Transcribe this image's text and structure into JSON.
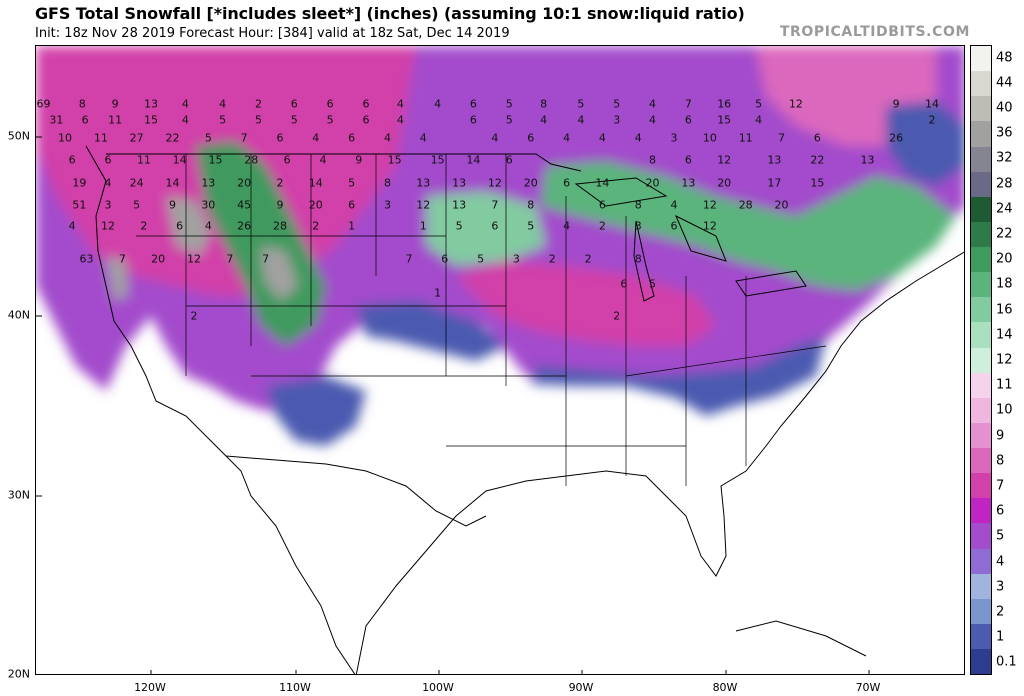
{
  "header": {
    "title": "GFS Total Snowfall [*includes sleet*] (inches) (assuming 10:1 snow:liquid ratio)",
    "subtitle": "Init: 18z Nov 28 2019   Forecast Hour: [384]   valid at 18z Sat, Dec 14 2019",
    "brand": "TROPICALTIDBITS.COM"
  },
  "axes": {
    "lat_labels": [
      "50N",
      "40N",
      "30N",
      "20N"
    ],
    "lon_labels": [
      "120W",
      "110W",
      "100W",
      "90W",
      "80W",
      "70W"
    ]
  },
  "colorbar": {
    "labels": [
      "48",
      "44",
      "40",
      "36",
      "32",
      "28",
      "24",
      "22",
      "20",
      "18",
      "16",
      "14",
      "12",
      "11",
      "10",
      "9",
      "8",
      "7",
      "6",
      "5",
      "4",
      "3",
      "2",
      "1",
      "0.1"
    ],
    "colors": [
      "#f2f2ee",
      "#d8d8d0",
      "#bdbdb6",
      "#a1a1a0",
      "#858592",
      "#6a6a86",
      "#1e5a34",
      "#2e7a48",
      "#3f9a5e",
      "#5ab47c",
      "#82caa0",
      "#aadfc0",
      "#ceefdc",
      "#f3d4ec",
      "#efb6e0",
      "#e590cf",
      "#db68bd",
      "#d240a9",
      "#c025c4",
      "#a34ccc",
      "#8e6cd4",
      "#a0b4de",
      "#7a96cc",
      "#4c5ab0",
      "#2e3c90"
    ]
  },
  "map_values": [
    {
      "v": "69",
      "lat": 51.8,
      "lon": -127.5
    },
    {
      "v": "8",
      "lat": 51.8,
      "lon": -124.8
    },
    {
      "v": "9",
      "lat": 51.8,
      "lon": -122.5
    },
    {
      "v": "13",
      "lat": 51.8,
      "lon": -120.0
    },
    {
      "v": "4",
      "lat": 51.8,
      "lon": -117.6
    },
    {
      "v": "4",
      "lat": 51.8,
      "lon": -115.0
    },
    {
      "v": "2",
      "lat": 51.8,
      "lon": -112.5
    },
    {
      "v": "6",
      "lat": 51.8,
      "lon": -110.0
    },
    {
      "v": "6",
      "lat": 51.8,
      "lon": -107.5
    },
    {
      "v": "6",
      "lat": 51.8,
      "lon": -105.0
    },
    {
      "v": "4",
      "lat": 51.8,
      "lon": -102.6
    },
    {
      "v": "4",
      "lat": 51.8,
      "lon": -100.0
    },
    {
      "v": "6",
      "lat": 51.8,
      "lon": -97.5
    },
    {
      "v": "5",
      "lat": 51.8,
      "lon": -95.0
    },
    {
      "v": "8",
      "lat": 51.8,
      "lon": -92.6
    },
    {
      "v": "5",
      "lat": 51.8,
      "lon": -90.0
    },
    {
      "v": "5",
      "lat": 51.8,
      "lon": -87.5
    },
    {
      "v": "4",
      "lat": 51.8,
      "lon": -85.0
    },
    {
      "v": "7",
      "lat": 51.8,
      "lon": -82.5
    },
    {
      "v": "16",
      "lat": 51.8,
      "lon": -80.0
    },
    {
      "v": "5",
      "lat": 51.8,
      "lon": -77.6
    },
    {
      "v": "12",
      "lat": 51.8,
      "lon": -75.0
    },
    {
      "v": "9",
      "lat": 51.8,
      "lon": -68.0
    },
    {
      "v": "14",
      "lat": 51.8,
      "lon": -65.5
    },
    {
      "v": "31",
      "lat": 50.9,
      "lon": -126.6
    },
    {
      "v": "6",
      "lat": 50.9,
      "lon": -124.6
    },
    {
      "v": "11",
      "lat": 50.9,
      "lon": -122.5
    },
    {
      "v": "15",
      "lat": 50.9,
      "lon": -120.0
    },
    {
      "v": "4",
      "lat": 50.9,
      "lon": -117.6
    },
    {
      "v": "5",
      "lat": 50.9,
      "lon": -115.0
    },
    {
      "v": "5",
      "lat": 50.9,
      "lon": -112.5
    },
    {
      "v": "5",
      "lat": 50.9,
      "lon": -110.0
    },
    {
      "v": "5",
      "lat": 50.9,
      "lon": -107.5
    },
    {
      "v": "6",
      "lat": 50.9,
      "lon": -105.0
    },
    {
      "v": "4",
      "lat": 50.9,
      "lon": -102.6
    },
    {
      "v": "6",
      "lat": 50.9,
      "lon": -97.5
    },
    {
      "v": "5",
      "lat": 50.9,
      "lon": -95.0
    },
    {
      "v": "4",
      "lat": 50.9,
      "lon": -92.6
    },
    {
      "v": "4",
      "lat": 50.9,
      "lon": -90.0
    },
    {
      "v": "3",
      "lat": 50.9,
      "lon": -87.5
    },
    {
      "v": "4",
      "lat": 50.9,
      "lon": -85.0
    },
    {
      "v": "6",
      "lat": 50.9,
      "lon": -82.5
    },
    {
      "v": "15",
      "lat": 50.9,
      "lon": -80.0
    },
    {
      "v": "4",
      "lat": 50.9,
      "lon": -77.6
    },
    {
      "v": "2",
      "lat": 50.9,
      "lon": -65.5
    },
    {
      "v": "10",
      "lat": 49.9,
      "lon": -126.0
    },
    {
      "v": "11",
      "lat": 49.9,
      "lon": -123.5
    },
    {
      "v": "27",
      "lat": 49.9,
      "lon": -121.0
    },
    {
      "v": "22",
      "lat": 49.9,
      "lon": -118.5
    },
    {
      "v": "5",
      "lat": 49.9,
      "lon": -116.0
    },
    {
      "v": "7",
      "lat": 49.9,
      "lon": -113.5
    },
    {
      "v": "6",
      "lat": 49.9,
      "lon": -111.0
    },
    {
      "v": "4",
      "lat": 49.9,
      "lon": -108.5
    },
    {
      "v": "6",
      "lat": 49.9,
      "lon": -106.0
    },
    {
      "v": "4",
      "lat": 49.9,
      "lon": -103.5
    },
    {
      "v": "4",
      "lat": 49.9,
      "lon": -101.0
    },
    {
      "v": "4",
      "lat": 49.9,
      "lon": -96.0
    },
    {
      "v": "6",
      "lat": 49.9,
      "lon": -93.5
    },
    {
      "v": "4",
      "lat": 49.9,
      "lon": -91.0
    },
    {
      "v": "4",
      "lat": 49.9,
      "lon": -88.5
    },
    {
      "v": "4",
      "lat": 49.9,
      "lon": -86.0
    },
    {
      "v": "3",
      "lat": 49.9,
      "lon": -83.5
    },
    {
      "v": "10",
      "lat": 49.9,
      "lon": -81.0
    },
    {
      "v": "11",
      "lat": 49.9,
      "lon": -78.5
    },
    {
      "v": "7",
      "lat": 49.9,
      "lon": -76.0
    },
    {
      "v": "6",
      "lat": 49.9,
      "lon": -73.5
    },
    {
      "v": "26",
      "lat": 49.9,
      "lon": -68.0
    },
    {
      "v": "6",
      "lat": 48.7,
      "lon": -125.5
    },
    {
      "v": "6",
      "lat": 48.7,
      "lon": -123.0
    },
    {
      "v": "11",
      "lat": 48.7,
      "lon": -120.5
    },
    {
      "v": "14",
      "lat": 48.7,
      "lon": -118.0
    },
    {
      "v": "15",
      "lat": 48.7,
      "lon": -115.5
    },
    {
      "v": "28",
      "lat": 48.7,
      "lon": -113.0
    },
    {
      "v": "6",
      "lat": 48.7,
      "lon": -110.5
    },
    {
      "v": "4",
      "lat": 48.7,
      "lon": -108.0
    },
    {
      "v": "9",
      "lat": 48.7,
      "lon": -105.5
    },
    {
      "v": "15",
      "lat": 48.7,
      "lon": -103.0
    },
    {
      "v": "15",
      "lat": 48.7,
      "lon": -100.0
    },
    {
      "v": "14",
      "lat": 48.7,
      "lon": -97.5
    },
    {
      "v": "6",
      "lat": 48.7,
      "lon": -95.0
    },
    {
      "v": "8",
      "lat": 48.7,
      "lon": -85.0
    },
    {
      "v": "6",
      "lat": 48.7,
      "lon": -82.5
    },
    {
      "v": "12",
      "lat": 48.7,
      "lon": -80.0
    },
    {
      "v": "13",
      "lat": 48.7,
      "lon": -76.5
    },
    {
      "v": "22",
      "lat": 48.7,
      "lon": -73.5
    },
    {
      "v": "13",
      "lat": 48.7,
      "lon": -70.0
    },
    {
      "v": "19",
      "lat": 47.4,
      "lon": -125.0
    },
    {
      "v": "4",
      "lat": 47.4,
      "lon": -123.0
    },
    {
      "v": "24",
      "lat": 47.4,
      "lon": -121.0
    },
    {
      "v": "14",
      "lat": 47.4,
      "lon": -118.5
    },
    {
      "v": "13",
      "lat": 47.4,
      "lon": -116.0
    },
    {
      "v": "20",
      "lat": 47.4,
      "lon": -113.5
    },
    {
      "v": "2",
      "lat": 47.4,
      "lon": -111.0
    },
    {
      "v": "14",
      "lat": 47.4,
      "lon": -108.5
    },
    {
      "v": "5",
      "lat": 47.4,
      "lon": -106.0
    },
    {
      "v": "8",
      "lat": 47.4,
      "lon": -103.5
    },
    {
      "v": "13",
      "lat": 47.4,
      "lon": -101.0
    },
    {
      "v": "13",
      "lat": 47.4,
      "lon": -98.5
    },
    {
      "v": "12",
      "lat": 47.4,
      "lon": -96.0
    },
    {
      "v": "20",
      "lat": 47.4,
      "lon": -93.5
    },
    {
      "v": "6",
      "lat": 47.4,
      "lon": -91.0
    },
    {
      "v": "14",
      "lat": 47.4,
      "lon": -88.5
    },
    {
      "v": "20",
      "lat": 47.4,
      "lon": -85.0
    },
    {
      "v": "13",
      "lat": 47.4,
      "lon": -82.5
    },
    {
      "v": "20",
      "lat": 47.4,
      "lon": -80.0
    },
    {
      "v": "17",
      "lat": 47.4,
      "lon": -76.5
    },
    {
      "v": "15",
      "lat": 47.4,
      "lon": -73.5
    },
    {
      "v": "51",
      "lat": 46.2,
      "lon": -125.0
    },
    {
      "v": "3",
      "lat": 46.2,
      "lon": -123.0
    },
    {
      "v": "5",
      "lat": 46.2,
      "lon": -121.0
    },
    {
      "v": "9",
      "lat": 46.2,
      "lon": -118.5
    },
    {
      "v": "30",
      "lat": 46.2,
      "lon": -116.0
    },
    {
      "v": "45",
      "lat": 46.2,
      "lon": -113.5
    },
    {
      "v": "9",
      "lat": 46.2,
      "lon": -111.0
    },
    {
      "v": "20",
      "lat": 46.2,
      "lon": -108.5
    },
    {
      "v": "6",
      "lat": 46.2,
      "lon": -106.0
    },
    {
      "v": "3",
      "lat": 46.2,
      "lon": -103.5
    },
    {
      "v": "12",
      "lat": 46.2,
      "lon": -101.0
    },
    {
      "v": "13",
      "lat": 46.2,
      "lon": -98.5
    },
    {
      "v": "7",
      "lat": 46.2,
      "lon": -96.0
    },
    {
      "v": "8",
      "lat": 46.2,
      "lon": -93.5
    },
    {
      "v": "6",
      "lat": 46.2,
      "lon": -88.5
    },
    {
      "v": "8",
      "lat": 46.2,
      "lon": -86.0
    },
    {
      "v": "4",
      "lat": 46.2,
      "lon": -83.5
    },
    {
      "v": "12",
      "lat": 46.2,
      "lon": -81.0
    },
    {
      "v": "28",
      "lat": 46.2,
      "lon": -78.5
    },
    {
      "v": "20",
      "lat": 46.2,
      "lon": -76.0
    },
    {
      "v": "4",
      "lat": 45.0,
      "lon": -125.5
    },
    {
      "v": "12",
      "lat": 45.0,
      "lon": -123.0
    },
    {
      "v": "2",
      "lat": 45.0,
      "lon": -120.5
    },
    {
      "v": "6",
      "lat": 45.0,
      "lon": -118.0
    },
    {
      "v": "4",
      "lat": 45.0,
      "lon": -116.0
    },
    {
      "v": "26",
      "lat": 45.0,
      "lon": -113.5
    },
    {
      "v": "28",
      "lat": 45.0,
      "lon": -111.0
    },
    {
      "v": "2",
      "lat": 45.0,
      "lon": -108.5
    },
    {
      "v": "1",
      "lat": 45.0,
      "lon": -106.0
    },
    {
      "v": "1",
      "lat": 45.0,
      "lon": -101.0
    },
    {
      "v": "5",
      "lat": 45.0,
      "lon": -98.5
    },
    {
      "v": "6",
      "lat": 45.0,
      "lon": -96.0
    },
    {
      "v": "5",
      "lat": 45.0,
      "lon": -93.5
    },
    {
      "v": "4",
      "lat": 45.0,
      "lon": -91.0
    },
    {
      "v": "2",
      "lat": 45.0,
      "lon": -88.5
    },
    {
      "v": "3",
      "lat": 45.0,
      "lon": -86.0
    },
    {
      "v": "6",
      "lat": 45.0,
      "lon": -83.5
    },
    {
      "v": "12",
      "lat": 45.0,
      "lon": -81.0
    },
    {
      "v": "63",
      "lat": 43.2,
      "lon": -124.5
    },
    {
      "v": "7",
      "lat": 43.2,
      "lon": -122.0
    },
    {
      "v": "20",
      "lat": 43.2,
      "lon": -119.5
    },
    {
      "v": "12",
      "lat": 43.2,
      "lon": -117.0
    },
    {
      "v": "7",
      "lat": 43.2,
      "lon": -114.5
    },
    {
      "v": "7",
      "lat": 43.2,
      "lon": -112.0
    },
    {
      "v": "7",
      "lat": 43.2,
      "lon": -102.0
    },
    {
      "v": "6",
      "lat": 43.2,
      "lon": -99.5
    },
    {
      "v": "5",
      "lat": 43.2,
      "lon": -97.0
    },
    {
      "v": "3",
      "lat": 43.2,
      "lon": -94.5
    },
    {
      "v": "2",
      "lat": 43.2,
      "lon": -92.0
    },
    {
      "v": "2",
      "lat": 43.2,
      "lon": -89.5
    },
    {
      "v": "8",
      "lat": 43.2,
      "lon": -86.0
    },
    {
      "v": "6",
      "lat": 41.8,
      "lon": -87.0
    },
    {
      "v": "5",
      "lat": 41.8,
      "lon": -85.0
    },
    {
      "v": "1",
      "lat": 41.3,
      "lon": -100.0
    },
    {
      "v": "2",
      "lat": 40.0,
      "lon": -117.0
    },
    {
      "v": "2",
      "lat": 40.0,
      "lon": -87.5
    }
  ]
}
